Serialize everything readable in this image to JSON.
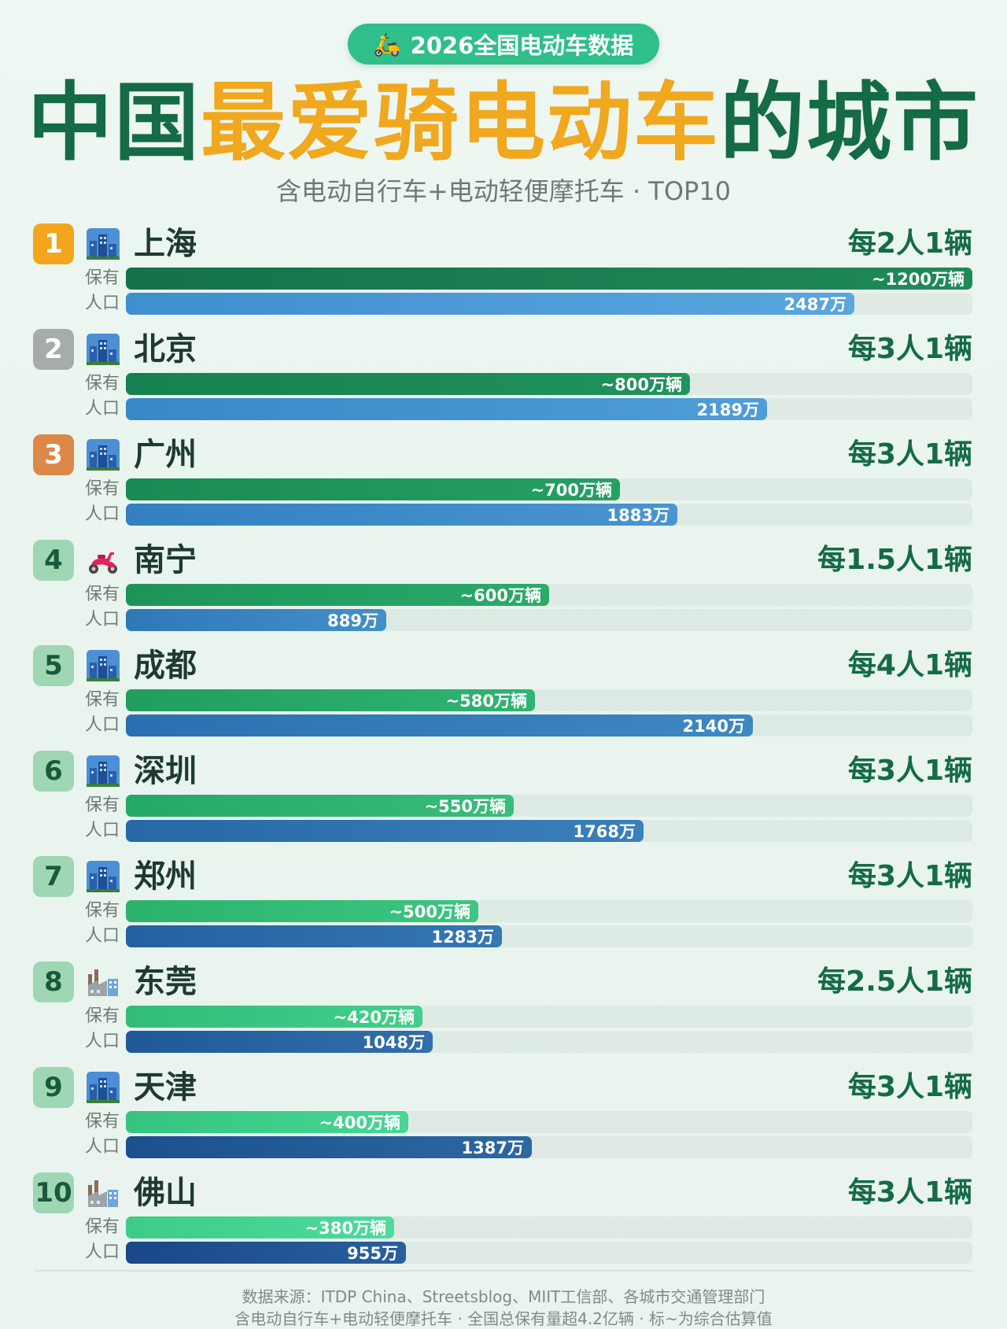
{
  "header": {
    "badge": "2026全国电动车数据",
    "title_a": "中国",
    "title_b": "最爱骑电动车",
    "title_c": "的城市",
    "subtitle": "含电动自行车+电动轻便摩托车 · TOP10"
  },
  "labels": {
    "owned": "保有",
    "population": "人口"
  },
  "colors": {
    "title_green": "#146b45",
    "title_gold": "#f0a81f",
    "rank_gold": "#f2a51d",
    "rank_silver": "#a6acaa",
    "rank_bronze": "#dc8848",
    "rank_other": "#9fd6b4"
  },
  "chart_data": {
    "type": "bar",
    "orientation": "horizontal",
    "categories": [
      "上海",
      "北京",
      "广州",
      "南宁",
      "成都",
      "深圳",
      "郑州",
      "东莞",
      "天津",
      "佛山"
    ],
    "ranks": [
      "1",
      "2",
      "3",
      "4",
      "5",
      "6",
      "7",
      "8",
      "9",
      "10"
    ],
    "icons": [
      "cityscape-icon",
      "cityscape-icon",
      "cityscape-icon",
      "scooter-icon",
      "cityscape-icon",
      "cityscape-icon",
      "cityscape-icon",
      "factory-icon",
      "cityscape-icon",
      "factory-icon"
    ],
    "ratios": [
      "每2人1辆",
      "每3人1辆",
      "每3人1辆",
      "每1.5人1辆",
      "每4人1辆",
      "每3人1辆",
      "每3人1辆",
      "每2.5人1辆",
      "每3人1辆",
      "每3人1辆"
    ],
    "series": [
      {
        "name": "保有",
        "values": [
          1200,
          800,
          700,
          600,
          580,
          550,
          500,
          420,
          400,
          380
        ],
        "value_labels": [
          "~1200万辆",
          "~800万辆",
          "~700万辆",
          "~600万辆",
          "~580万辆",
          "~550万辆",
          "~500万辆",
          "~420万辆",
          "~400万辆",
          "~380万辆"
        ]
      },
      {
        "name": "人口",
        "values": [
          2487,
          2189,
          1883,
          889,
          2140,
          1768,
          1283,
          1048,
          1387,
          955
        ],
        "value_labels": [
          "2487万",
          "2189万",
          "1883万",
          "889万",
          "2140万",
          "1768万",
          "1283万",
          "1048万",
          "1387万",
          "955万"
        ]
      }
    ]
  },
  "footer": {
    "source": "数据来源：ITDP China、Streetsblog、MIIT工信部、各城市交通管理部门",
    "note": "含电动自行车+电动轻便摩托车 · 全国总保有量超4.2亿辆 · 标~为综合估算值"
  }
}
